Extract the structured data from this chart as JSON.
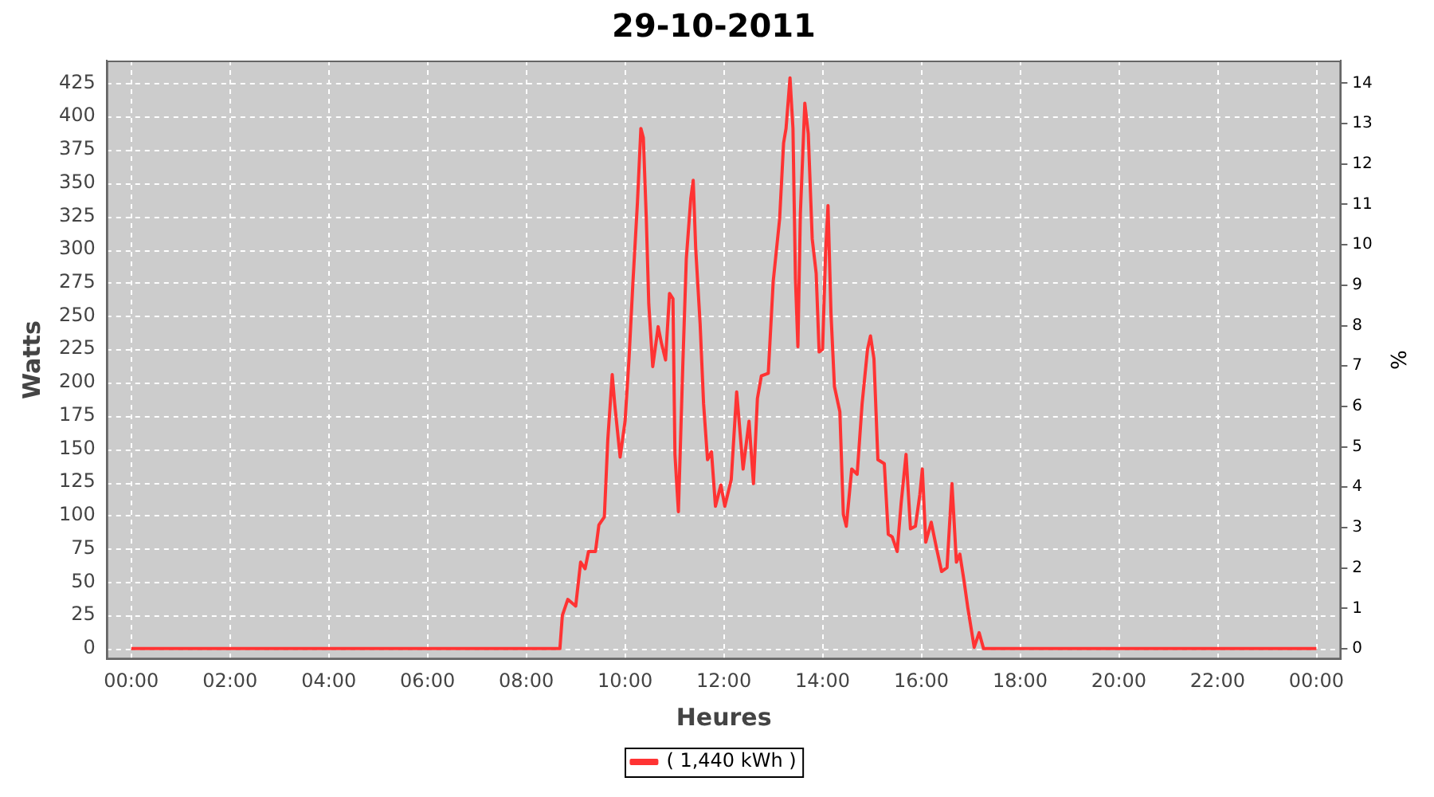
{
  "chart_data": {
    "type": "line",
    "title": "29-10-2011",
    "xlabel": "Heures",
    "ylabel": "Watts",
    "y2label": "%",
    "series": [
      {
        "name": "( 1,440 kWh )",
        "color": "#ff3333",
        "x": [
          0,
          8.68,
          8.73,
          8.84,
          9.0,
          9.1,
          9.19,
          9.26,
          9.4,
          9.47,
          9.58,
          9.65,
          9.74,
          9.79,
          9.9,
          10.0,
          10.08,
          10.16,
          10.25,
          10.32,
          10.37,
          10.43,
          10.48,
          10.56,
          10.67,
          10.74,
          10.82,
          10.9,
          10.97,
          11.01,
          11.08,
          11.17,
          11.24,
          11.33,
          11.38,
          11.43,
          11.52,
          11.59,
          11.67,
          11.75,
          11.83,
          11.94,
          12.02,
          12.15,
          12.26,
          12.39,
          12.51,
          12.6,
          12.68,
          12.76,
          12.9,
          13.0,
          13.13,
          13.21,
          13.26,
          13.34,
          13.4,
          13.45,
          13.5,
          13.55,
          13.64,
          13.71,
          13.79,
          13.87,
          13.93,
          14.0,
          14.06,
          14.11,
          14.17,
          14.24,
          14.35,
          14.42,
          14.48,
          14.59,
          14.7,
          14.8,
          14.91,
          14.97,
          15.04,
          15.12,
          15.25,
          15.33,
          15.41,
          15.51,
          15.59,
          15.69,
          15.78,
          15.88,
          15.97,
          16.02,
          16.09,
          16.2,
          16.31,
          16.41,
          16.52,
          16.62,
          16.71,
          16.78,
          16.86,
          16.94,
          17.07,
          17.17,
          17.26,
          24
        ],
        "values": [
          0,
          0,
          25,
          37,
          32,
          65,
          60,
          73,
          73,
          93,
          99,
          157,
          206,
          184,
          144,
          171,
          218,
          276,
          335,
          391,
          384,
          323,
          259,
          212,
          242,
          229,
          217,
          267,
          263,
          146,
          103,
          214,
          293,
          338,
          352,
          301,
          244,
          184,
          142,
          148,
          107,
          123,
          107,
          127,
          193,
          135,
          171,
          124,
          188,
          205,
          207,
          276,
          323,
          380,
          391,
          429,
          391,
          278,
          227,
          327,
          410,
          387,
          308,
          282,
          223,
          225,
          297,
          333,
          252,
          197,
          178,
          101,
          92,
          135,
          131,
          184,
          225,
          235,
          218,
          142,
          139,
          86,
          84,
          73,
          109,
          146,
          90,
          92,
          116,
          135,
          80,
          95,
          75,
          58,
          61,
          124,
          65,
          71,
          52,
          31,
          1,
          12,
          0,
          0
        ]
      }
    ],
    "xlim": [
      -0.5,
      24.5
    ],
    "xticks": [
      {
        "value": 0,
        "label": "00:00"
      },
      {
        "value": 2,
        "label": "02:00"
      },
      {
        "value": 4,
        "label": "04:00"
      },
      {
        "value": 6,
        "label": "06:00"
      },
      {
        "value": 8,
        "label": "08:00"
      },
      {
        "value": 10,
        "label": "10:00"
      },
      {
        "value": 12,
        "label": "12:00"
      },
      {
        "value": 14,
        "label": "14:00"
      },
      {
        "value": 16,
        "label": "16:00"
      },
      {
        "value": 18,
        "label": "18:00"
      },
      {
        "value": 20,
        "label": "20:00"
      },
      {
        "value": 22,
        "label": "22:00"
      },
      {
        "value": 24,
        "label": "00:00"
      }
    ],
    "ylim": [
      -8,
      442
    ],
    "yticks": [
      0,
      25,
      50,
      75,
      100,
      125,
      150,
      175,
      200,
      225,
      250,
      275,
      300,
      325,
      350,
      375,
      400,
      425
    ],
    "y2lim": [
      -0.26,
      14.56
    ],
    "y2ticks": [
      0,
      1,
      2,
      3,
      4,
      5,
      6,
      7,
      8,
      9,
      10,
      11,
      12,
      13,
      14
    ],
    "grid": true,
    "legend": "bottom",
    "marker": "none",
    "line_style": "solid"
  }
}
